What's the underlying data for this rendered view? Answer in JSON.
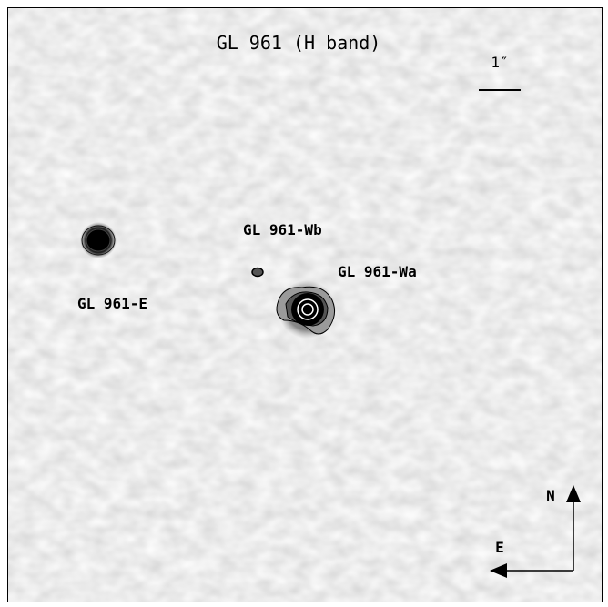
{
  "title": "GL 961 (H band)",
  "scale_label": "1″",
  "sources": [
    {
      "label": "GL 961-Wb"
    },
    {
      "label": "GL 961-Wa"
    },
    {
      "label": "GL 961-E"
    }
  ],
  "compass": {
    "north": "N",
    "east": "E"
  }
}
